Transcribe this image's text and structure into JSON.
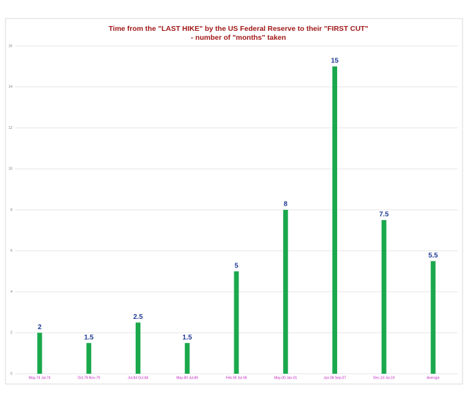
{
  "chart_data": {
    "type": "bar",
    "title": "Time from the  \"LAST HIKE\"  by the US Federal Reserve to their \"FIRST CUT\"",
    "subtitle": "- number of \"months\" taken",
    "categories": [
      "May-74 Jul-74",
      "Oct-79 Nov-79",
      "Jul-84 Oct-84",
      "May-89 Jul-89",
      "Feb-95 Jul-95",
      "May-00 Jan-01",
      "Jun-06 Sep-07",
      "Dec-18 Jul-19",
      "Average"
    ],
    "values": [
      2,
      1.5,
      2.5,
      1.5,
      5,
      8,
      15,
      7.5,
      5.5
    ],
    "color": "#1aa84c",
    "ylim": [
      0,
      16
    ],
    "yticks": [
      0,
      2,
      4,
      6,
      8,
      10,
      12,
      14,
      16
    ],
    "grid": true
  }
}
